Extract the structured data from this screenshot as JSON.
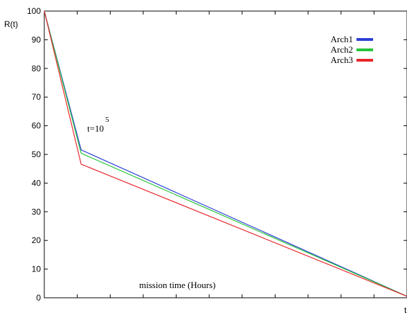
{
  "chart_data": {
    "type": "line",
    "ylabel": "R(t)",
    "xlabel": "mission time (Hours)",
    "x_axis_end_label": "t",
    "ylim": [
      0,
      100
    ],
    "yticks": [
      0,
      10,
      20,
      30,
      40,
      50,
      60,
      70,
      80,
      90,
      100
    ],
    "xlim": [
      0,
      1
    ],
    "grid": false,
    "legend_position": "top-right",
    "annotation": {
      "base": "t=10",
      "exponent": "5"
    },
    "series": [
      {
        "name": "Arch1",
        "color": "#2b3fd6",
        "x": [
          0,
          0.1016,
          1
        ],
        "y": [
          100,
          51.6,
          0.5
        ]
      },
      {
        "name": "Arch2",
        "color": "#27c43a",
        "x": [
          0,
          0.1016,
          1
        ],
        "y": [
          100,
          50.4,
          0.5
        ]
      },
      {
        "name": "Arch3",
        "color": "#e8262b",
        "x": [
          0,
          0.1016,
          1
        ],
        "y": [
          100,
          46.6,
          0.5
        ]
      }
    ]
  }
}
